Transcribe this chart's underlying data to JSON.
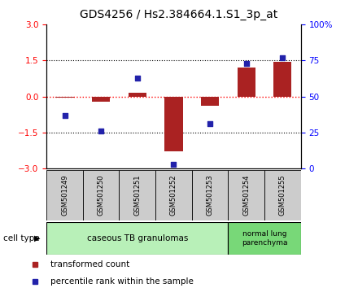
{
  "title": "GDS4256 / Hs2.384664.1.S1_3p_at",
  "samples": [
    "GSM501249",
    "GSM501250",
    "GSM501251",
    "GSM501252",
    "GSM501253",
    "GSM501254",
    "GSM501255"
  ],
  "transformed_count": [
    -0.05,
    -0.22,
    0.15,
    -2.3,
    -0.4,
    1.2,
    1.45
  ],
  "percentile_rank": [
    37,
    26,
    63,
    3,
    31,
    73,
    77
  ],
  "left_ylim": [
    -3,
    3
  ],
  "right_ylim": [
    0,
    100
  ],
  "left_yticks": [
    -3,
    -1.5,
    0,
    1.5,
    3
  ],
  "right_yticks": [
    0,
    25,
    50,
    75,
    100
  ],
  "right_yticklabels": [
    "0",
    "25",
    "50",
    "75",
    "100%"
  ],
  "bar_color": "#aa2222",
  "square_color": "#2222aa",
  "bar_width": 0.5,
  "group1_label": "caseous TB granulomas",
  "group2_label": "normal lung\nparenchyma",
  "group1_n": 5,
  "group2_n": 2,
  "cell_type_label": "cell type",
  "legend1": "transformed count",
  "legend2": "percentile rank within the sample",
  "group1_color": "#b8f0b8",
  "group2_color": "#78d878",
  "sample_box_color": "#cccccc",
  "title_fontsize": 10
}
